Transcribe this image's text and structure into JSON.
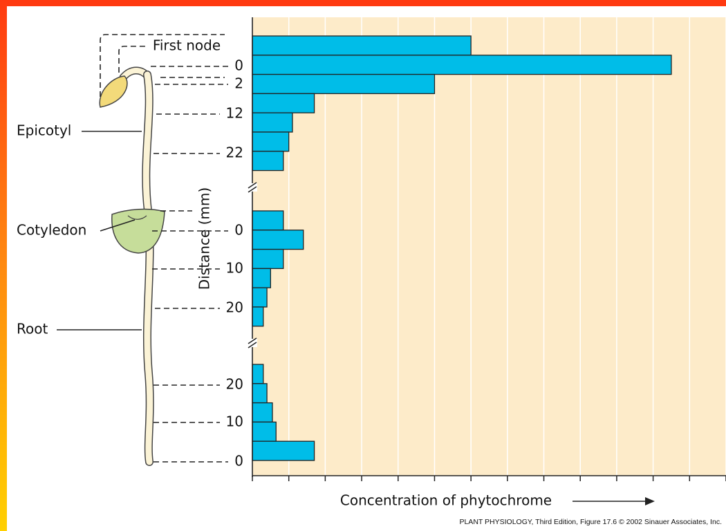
{
  "chart_data": {
    "type": "bar",
    "orientation": "horizontal",
    "x_label": "Concentration of phytochrome",
    "y_label": "Distance (mm)",
    "color": "#00bde8",
    "xlim": [
      0,
      13
    ],
    "xticks": [
      0,
      1,
      2,
      3,
      4,
      5,
      6,
      7,
      8,
      9,
      10,
      11,
      12,
      13
    ],
    "grid": true,
    "groups": [
      {
        "values": [
          6.0,
          11.5,
          5.0,
          1.7,
          1.1,
          1.0,
          0.85
        ]
      },
      {
        "values": [
          0.85,
          1.4,
          0.85,
          0.5,
          0.4,
          0.3
        ]
      },
      {
        "values": [
          0.3,
          0.4,
          0.55,
          0.65,
          1.7
        ]
      }
    ],
    "annotations": [
      "First node",
      "0",
      "2",
      "12",
      "22",
      "0",
      "10",
      "20",
      "20",
      "10",
      "0"
    ],
    "plant_labels": [
      "Epicotyl",
      "Cotyledon",
      "Root"
    ],
    "credit": "PLANT PHYSIOLOGY, Third Edition, Figure 17.6  © 2002 Sinauer Associates, Inc."
  }
}
